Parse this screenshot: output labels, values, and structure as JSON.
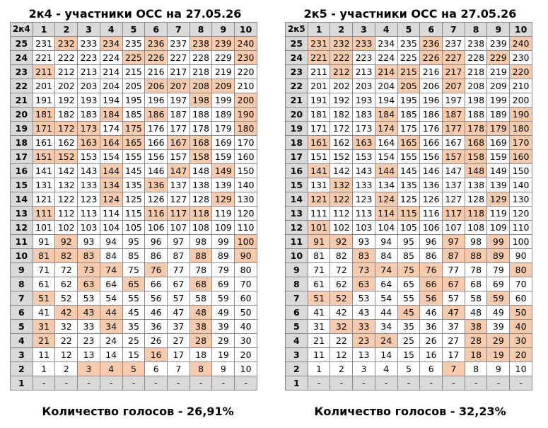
{
  "left": {
    "title": "2к4 - участники ОСС на 27.05.26",
    "corner": "2к4",
    "columns": [
      "1",
      "2",
      "3",
      "4",
      "5",
      "6",
      "7",
      "8",
      "9",
      "10"
    ],
    "rows": [
      {
        "floor": "25",
        "cells": [
          "231",
          "232",
          "233",
          "234",
          "235",
          "236",
          "237",
          "238",
          "239",
          "240"
        ],
        "hl": [
          2,
          4,
          6,
          8,
          9,
          10
        ]
      },
      {
        "floor": "24",
        "cells": [
          "221",
          "222",
          "223",
          "224",
          "225",
          "226",
          "227",
          "228",
          "229",
          "230"
        ],
        "hl": [
          5,
          6,
          10
        ]
      },
      {
        "floor": "23",
        "cells": [
          "211",
          "212",
          "213",
          "214",
          "215",
          "216",
          "217",
          "218",
          "219",
          "220"
        ],
        "hl": [
          1
        ]
      },
      {
        "floor": "22",
        "cells": [
          "201",
          "202",
          "203",
          "204",
          "205",
          "206",
          "207",
          "208",
          "209",
          "210"
        ],
        "hl": [
          6,
          7,
          8,
          9
        ]
      },
      {
        "floor": "21",
        "cells": [
          "191",
          "192",
          "193",
          "194",
          "195",
          "196",
          "197",
          "198",
          "199",
          "200"
        ],
        "hl": [
          8,
          10
        ]
      },
      {
        "floor": "20",
        "cells": [
          "181",
          "182",
          "183",
          "184",
          "185",
          "186",
          "187",
          "188",
          "189",
          "190"
        ],
        "hl": [
          1,
          4,
          6,
          10
        ]
      },
      {
        "floor": "19",
        "cells": [
          "171",
          "172",
          "173",
          "174",
          "175",
          "176",
          "177",
          "178",
          "179",
          "180"
        ],
        "hl": [
          1,
          2,
          3,
          5,
          10
        ]
      },
      {
        "floor": "18",
        "cells": [
          "161",
          "162",
          "163",
          "164",
          "165",
          "166",
          "167",
          "168",
          "169",
          "170"
        ],
        "hl": [
          3,
          4,
          5,
          7,
          8
        ]
      },
      {
        "floor": "17",
        "cells": [
          "151",
          "152",
          "153",
          "154",
          "155",
          "156",
          "157",
          "158",
          "159",
          "160"
        ],
        "hl": [
          1,
          2,
          8
        ]
      },
      {
        "floor": "16",
        "cells": [
          "141",
          "142",
          "143",
          "144",
          "145",
          "146",
          "147",
          "148",
          "149",
          "150"
        ],
        "hl": [
          4,
          7,
          9
        ]
      },
      {
        "floor": "15",
        "cells": [
          "131",
          "132",
          "133",
          "134",
          "135",
          "136",
          "137",
          "138",
          "139",
          "140"
        ],
        "hl": [
          4,
          6
        ]
      },
      {
        "floor": "14",
        "cells": [
          "121",
          "122",
          "123",
          "124",
          "125",
          "126",
          "127",
          "128",
          "129",
          "130"
        ],
        "hl": [
          4,
          9
        ]
      },
      {
        "floor": "13",
        "cells": [
          "111",
          "112",
          "113",
          "114",
          "115",
          "116",
          "117",
          "118",
          "119",
          "120"
        ],
        "hl": [
          1,
          6,
          7,
          8
        ]
      },
      {
        "floor": "12",
        "cells": [
          "101",
          "102",
          "103",
          "104",
          "105",
          "106",
          "107",
          "108",
          "109",
          "110"
        ],
        "hl": []
      },
      {
        "floor": "11",
        "cells": [
          "91",
          "92",
          "93",
          "94",
          "95",
          "96",
          "97",
          "98",
          "99",
          "100"
        ],
        "hl": [
          2,
          10
        ]
      },
      {
        "floor": "10",
        "cells": [
          "81",
          "82",
          "83",
          "84",
          "85",
          "86",
          "87",
          "88",
          "89",
          "90"
        ],
        "hl": [
          1,
          2,
          3,
          8,
          10
        ]
      },
      {
        "floor": "9",
        "cells": [
          "71",
          "72",
          "73",
          "74",
          "75",
          "76",
          "77",
          "78",
          "79",
          "80"
        ],
        "hl": [
          3,
          4,
          6
        ]
      },
      {
        "floor": "8",
        "cells": [
          "61",
          "62",
          "63",
          "64",
          "65",
          "66",
          "67",
          "68",
          "69",
          "70"
        ],
        "hl": [
          3,
          5,
          8
        ]
      },
      {
        "floor": "7",
        "cells": [
          "51",
          "52",
          "53",
          "54",
          "55",
          "56",
          "57",
          "58",
          "59",
          "60"
        ],
        "hl": [
          1
        ]
      },
      {
        "floor": "6",
        "cells": [
          "41",
          "42",
          "43",
          "44",
          "45",
          "46",
          "47",
          "48",
          "49",
          "50"
        ],
        "hl": [
          2,
          3,
          4,
          8
        ]
      },
      {
        "floor": "5",
        "cells": [
          "31",
          "32",
          "33",
          "34",
          "35",
          "36",
          "37",
          "38",
          "39",
          "40"
        ],
        "hl": [
          1,
          4,
          8
        ]
      },
      {
        "floor": "4",
        "cells": [
          "21",
          "22",
          "23",
          "24",
          "25",
          "26",
          "27",
          "28",
          "29",
          "30"
        ],
        "hl": [
          1,
          8
        ]
      },
      {
        "floor": "3",
        "cells": [
          "11",
          "12",
          "13",
          "14",
          "15",
          "16",
          "17",
          "18",
          "19",
          "20"
        ],
        "hl": [
          6
        ]
      },
      {
        "floor": "2",
        "cells": [
          "1",
          "2",
          "3",
          "4",
          "5",
          "6",
          "7",
          "8",
          "9",
          "10"
        ],
        "hl": [
          3,
          4,
          5,
          8
        ]
      },
      {
        "floor": "1",
        "cells": [
          "-",
          "-",
          "-",
          "-",
          "-",
          "-",
          "-",
          "-",
          "-",
          "-"
        ],
        "hl": []
      }
    ],
    "footer": "Количество голосов - 26,91%"
  },
  "right": {
    "title": "2к5 - участники ОСС на 27.05.26",
    "corner": "2к5",
    "columns": [
      "1",
      "2",
      "3",
      "4",
      "5",
      "6",
      "7",
      "8",
      "9",
      "10"
    ],
    "rows": [
      {
        "floor": "25",
        "cells": [
          "231",
          "232",
          "233",
          "234",
          "235",
          "236",
          "237",
          "238",
          "239",
          "240"
        ],
        "hl": [
          1,
          2,
          3,
          6,
          10
        ]
      },
      {
        "floor": "24",
        "cells": [
          "221",
          "222",
          "223",
          "224",
          "225",
          "226",
          "227",
          "228",
          "229",
          "230"
        ],
        "hl": [
          1,
          2,
          6,
          7,
          9
        ]
      },
      {
        "floor": "23",
        "cells": [
          "211",
          "212",
          "213",
          "214",
          "215",
          "216",
          "217",
          "218",
          "219",
          "220"
        ],
        "hl": [
          2,
          4,
          5,
          7,
          10
        ]
      },
      {
        "floor": "22",
        "cells": [
          "201",
          "202",
          "203",
          "204",
          "205",
          "206",
          "207",
          "208",
          "209",
          "210"
        ],
        "hl": [
          5,
          7
        ]
      },
      {
        "floor": "21",
        "cells": [
          "191",
          "192",
          "193",
          "194",
          "195",
          "196",
          "197",
          "198",
          "199",
          "200"
        ],
        "hl": []
      },
      {
        "floor": "20",
        "cells": [
          "181",
          "182",
          "183",
          "184",
          "185",
          "186",
          "187",
          "188",
          "189",
          "190"
        ],
        "hl": [
          4,
          7,
          10
        ]
      },
      {
        "floor": "19",
        "cells": [
          "171",
          "172",
          "173",
          "174",
          "175",
          "176",
          "177",
          "178",
          "179",
          "180"
        ],
        "hl": [
          4,
          7,
          8,
          9,
          10
        ]
      },
      {
        "floor": "18",
        "cells": [
          "161",
          "162",
          "163",
          "164",
          "165",
          "166",
          "167",
          "168",
          "169",
          "170"
        ],
        "hl": [
          1,
          3,
          5,
          8,
          10
        ]
      },
      {
        "floor": "17",
        "cells": [
          "151",
          "152",
          "153",
          "154",
          "155",
          "156",
          "157",
          "158",
          "159",
          "160"
        ],
        "hl": [
          7,
          8,
          10
        ]
      },
      {
        "floor": "16",
        "cells": [
          "141",
          "142",
          "143",
          "144",
          "145",
          "146",
          "147",
          "148",
          "149",
          "150"
        ],
        "hl": [
          1,
          4,
          8
        ]
      },
      {
        "floor": "15",
        "cells": [
          "131",
          "132",
          "133",
          "134",
          "135",
          "136",
          "137",
          "138",
          "139",
          "140"
        ],
        "hl": [
          2
        ]
      },
      {
        "floor": "14",
        "cells": [
          "121",
          "122",
          "123",
          "124",
          "125",
          "126",
          "127",
          "128",
          "129",
          "130"
        ],
        "hl": [
          1,
          2,
          4,
          9
        ]
      },
      {
        "floor": "13",
        "cells": [
          "111",
          "112",
          "113",
          "114",
          "115",
          "116",
          "117",
          "118",
          "119",
          "120"
        ],
        "hl": [
          4,
          5,
          7,
          8
        ]
      },
      {
        "floor": "12",
        "cells": [
          "101",
          "102",
          "103",
          "104",
          "105",
          "106",
          "107",
          "108",
          "109",
          "110"
        ],
        "hl": [
          1
        ]
      },
      {
        "floor": "11",
        "cells": [
          "91",
          "92",
          "93",
          "94",
          "95",
          "96",
          "97",
          "98",
          "99",
          "100"
        ],
        "hl": [
          1,
          2,
          7,
          9
        ]
      },
      {
        "floor": "10",
        "cells": [
          "81",
          "82",
          "83",
          "84",
          "85",
          "86",
          "87",
          "88",
          "89",
          "90"
        ],
        "hl": [
          3,
          7,
          8,
          9
        ]
      },
      {
        "floor": "9",
        "cells": [
          "71",
          "72",
          "73",
          "74",
          "75",
          "76",
          "77",
          "78",
          "79",
          "80"
        ],
        "hl": [
          3,
          4,
          5,
          6,
          10
        ]
      },
      {
        "floor": "8",
        "cells": [
          "61",
          "62",
          "63",
          "64",
          "65",
          "66",
          "67",
          "68",
          "69",
          "70"
        ],
        "hl": [
          3,
          6,
          7
        ]
      },
      {
        "floor": "7",
        "cells": [
          "51",
          "52",
          "53",
          "54",
          "55",
          "56",
          "57",
          "58",
          "59",
          "60"
        ],
        "hl": [
          1,
          2,
          6,
          9
        ]
      },
      {
        "floor": "6",
        "cells": [
          "41",
          "42",
          "43",
          "44",
          "45",
          "46",
          "47",
          "48",
          "49",
          "50"
        ],
        "hl": [
          5,
          7,
          10
        ]
      },
      {
        "floor": "5",
        "cells": [
          "31",
          "32",
          "33",
          "34",
          "35",
          "36",
          "37",
          "38",
          "39",
          "40"
        ],
        "hl": [
          2,
          3,
          8,
          10
        ]
      },
      {
        "floor": "4",
        "cells": [
          "21",
          "22",
          "23",
          "24",
          "25",
          "26",
          "27",
          "28",
          "29",
          "30"
        ],
        "hl": [
          3,
          4,
          8,
          9,
          10
        ]
      },
      {
        "floor": "3",
        "cells": [
          "11",
          "12",
          "13",
          "14",
          "15",
          "16",
          "17",
          "18",
          "19",
          "20"
        ],
        "hl": [
          8,
          9,
          10
        ]
      },
      {
        "floor": "2",
        "cells": [
          "1",
          "2",
          "3",
          "4",
          "5",
          "6",
          "7",
          "8",
          "9",
          "10"
        ],
        "hl": [
          7
        ]
      },
      {
        "floor": "1",
        "cells": [
          "-",
          "-",
          "-",
          "-",
          "-",
          "-",
          "-",
          "-",
          "-",
          "-"
        ],
        "hl": []
      }
    ],
    "footer": "Количество голосов - 32,23%"
  },
  "colors": {
    "highlight": "#f8cbad",
    "header": "#d9d9d9",
    "border": "#8a8a8a"
  }
}
